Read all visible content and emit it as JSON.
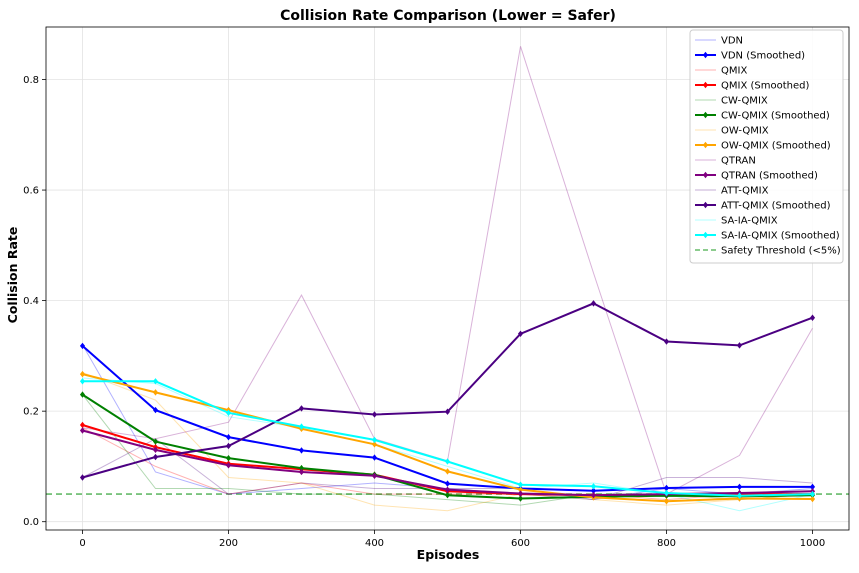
{
  "chart_data": {
    "type": "line",
    "title": "Collision Rate Comparison (Lower = Safer)",
    "xlabel": "Episodes",
    "ylabel": "Collision Rate",
    "xlim": [
      -50,
      1050
    ],
    "ylim": [
      -0.015,
      0.895
    ],
    "xticks": [
      0,
      200,
      400,
      600,
      800,
      1000
    ],
    "yticks": [
      0.0,
      0.2,
      0.4,
      0.6,
      0.8
    ],
    "grid": true,
    "legend_position": "top-right",
    "x": [
      0,
      100,
      200,
      300,
      400,
      500,
      600,
      700,
      800,
      900,
      1000
    ],
    "series": [
      {
        "name": "VDN",
        "style": "raw",
        "color": "#0000ff",
        "values": [
          0.32,
          0.09,
          0.05,
          0.06,
          0.07,
          0.06,
          0.05,
          0.04,
          0.06,
          0.05,
          0.06
        ]
      },
      {
        "name": "VDN (Smoothed)",
        "style": "smoothed",
        "color": "#0000ff",
        "values": [
          0.318,
          0.202,
          0.153,
          0.129,
          0.116,
          0.069,
          0.06,
          0.056,
          0.061,
          0.063,
          0.063
        ]
      },
      {
        "name": "QMIX",
        "style": "raw",
        "color": "#ff0000",
        "values": [
          0.17,
          0.1,
          0.05,
          0.07,
          0.05,
          0.05,
          0.05,
          0.05,
          0.04,
          0.05,
          0.05
        ]
      },
      {
        "name": "QMIX (Smoothed)",
        "style": "smoothed",
        "color": "#ff0000",
        "values": [
          0.175,
          0.135,
          0.105,
          0.095,
          0.085,
          0.055,
          0.05,
          0.048,
          0.048,
          0.05,
          0.05
        ]
      },
      {
        "name": "CW-QMIX",
        "style": "raw",
        "color": "#008000",
        "values": [
          0.23,
          0.06,
          0.06,
          0.05,
          0.05,
          0.04,
          0.03,
          0.05,
          0.05,
          0.04,
          0.05
        ]
      },
      {
        "name": "CW-QMIX (Smoothed)",
        "style": "smoothed",
        "color": "#008000",
        "values": [
          0.23,
          0.145,
          0.115,
          0.097,
          0.085,
          0.048,
          0.042,
          0.045,
          0.047,
          0.046,
          0.048
        ]
      },
      {
        "name": "OW-QMIX",
        "style": "raw",
        "color": "#ffa500",
        "values": [
          0.27,
          0.22,
          0.08,
          0.07,
          0.03,
          0.02,
          0.05,
          0.04,
          0.03,
          0.04,
          0.05
        ]
      },
      {
        "name": "OW-QMIX (Smoothed)",
        "style": "smoothed",
        "color": "#ffa500",
        "values": [
          0.267,
          0.234,
          0.202,
          0.168,
          0.14,
          0.091,
          0.058,
          0.044,
          0.037,
          0.042,
          0.041
        ]
      },
      {
        "name": "QTRAN",
        "style": "raw",
        "color": "#800080",
        "values": [
          0.17,
          0.15,
          0.18,
          0.41,
          0.15,
          0.11,
          0.86,
          0.45,
          0.05,
          0.12,
          0.35
        ]
      },
      {
        "name": "QTRAN (Smoothed)",
        "style": "smoothed",
        "color": "#800080",
        "values": [
          0.165,
          0.13,
          0.102,
          0.09,
          0.083,
          0.058,
          0.051,
          0.048,
          0.05,
          0.052,
          0.055
        ]
      },
      {
        "name": "ATT-QMIX",
        "style": "raw",
        "color": "#4b0082",
        "values": [
          0.08,
          0.15,
          0.05,
          0.07,
          0.06,
          0.06,
          0.06,
          0.04,
          0.08,
          0.08,
          0.07
        ]
      },
      {
        "name": "ATT-QMIX (Smoothed)",
        "style": "smoothed",
        "color": "#4b0082",
        "values": [
          0.08,
          0.117,
          0.137,
          0.205,
          0.194,
          0.199,
          0.34,
          0.395,
          0.326,
          0.319,
          0.369
        ]
      },
      {
        "name": "SA-IA-QMIX",
        "style": "raw",
        "color": "#00ffff",
        "values": [
          0.26,
          0.25,
          0.19,
          0.17,
          0.14,
          0.1,
          0.06,
          0.07,
          0.05,
          0.02,
          0.05
        ]
      },
      {
        "name": "SA-IA-QMIX (Smoothed)",
        "style": "smoothed",
        "color": "#00ffff",
        "values": [
          0.254,
          0.254,
          0.197,
          0.172,
          0.148,
          0.109,
          0.067,
          0.064,
          0.052,
          0.047,
          0.05
        ]
      }
    ],
    "threshold": {
      "name": "Safety Threshold (<5%)",
      "value": 0.05,
      "color": "#4caf50"
    }
  }
}
